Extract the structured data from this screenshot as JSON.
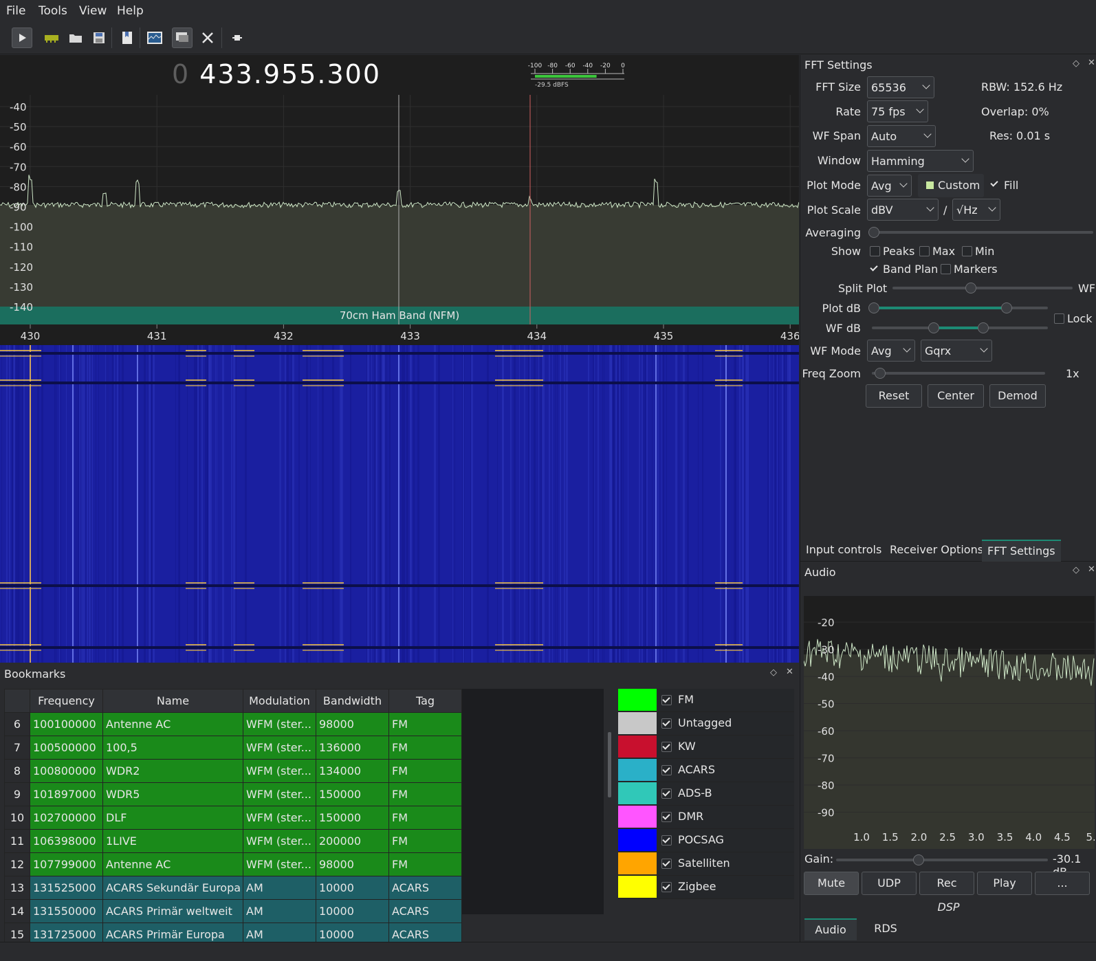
{
  "menu": [
    "File",
    "Tools",
    "View",
    "Help"
  ],
  "frequency": {
    "dim": "0",
    "main": " 433.955.300"
  },
  "smeter": {
    "scale": [
      "-100",
      "-80",
      "-60",
      "-40",
      "-20",
      "0"
    ],
    "reading": "-29.5 dBFS",
    "level_fraction": 0.7
  },
  "fft_plot": {
    "y_labels": [
      "-40",
      "-50",
      "-60",
      "-70",
      "-80",
      "-90",
      "-100",
      "-110",
      "-120",
      "-130",
      "-140"
    ],
    "x_labels": [
      "430",
      "431",
      "432",
      "433",
      "434",
      "435",
      "436"
    ],
    "band_label": "70cm Ham Band (NFM)"
  },
  "fft_settings": {
    "title": "FFT Settings",
    "fft_size_label": "FFT Size",
    "fft_size": "65536",
    "rbw": "RBW: 152.6 Hz",
    "rate_label": "Rate",
    "rate": "75 fps",
    "overlap": "Overlap: 0%",
    "wf_span_label": "WF Span",
    "wf_span": "Auto",
    "res": "Res: 0.01 s",
    "window_label": "Window",
    "window": "Hamming",
    "plot_mode_label": "Plot Mode",
    "plot_mode": "Avg",
    "custom": "Custom",
    "fill": "Fill",
    "plot_scale_label": "Plot Scale",
    "plot_scale": "dBV",
    "slash": "/",
    "plot_per": "√Hz",
    "averaging_label": "Averaging",
    "show_label": "Show",
    "peaks": "Peaks",
    "max": "Max",
    "min": "Min",
    "band_plan": "Band Plan",
    "markers": "Markers",
    "split_label": "Split",
    "split_plot": "Plot",
    "split_wf": "WF",
    "plot_db_label": "Plot dB",
    "wf_db_label": "WF dB",
    "lock": "Lock",
    "wf_mode_label": "WF Mode",
    "wf_mode": "Avg",
    "wf_colormap": "Gqrx",
    "freq_zoom_label": "Freq Zoom",
    "freq_zoom": "1x",
    "reset": "Reset",
    "center": "Center",
    "demod": "Demod"
  },
  "right_tabs": [
    "Input controls",
    "Receiver Options",
    "FFT Settings"
  ],
  "audio": {
    "title": "Audio",
    "y_labels": [
      "-20",
      "-30",
      "-40",
      "-50",
      "-60",
      "-70",
      "-80",
      "-90"
    ],
    "x_labels": [
      "1.0",
      "1.5",
      "2.0",
      "2.5",
      "3.0",
      "3.5",
      "4.0",
      "4.5",
      "5."
    ],
    "gain_label": "Gain:",
    "gain_value": "-30.1 dB",
    "buttons": [
      "Mute",
      "UDP",
      "Rec",
      "Play",
      "..."
    ],
    "dsp": "DSP",
    "tabs": [
      "Audio",
      "RDS"
    ]
  },
  "bookmarks": {
    "title": "Bookmarks",
    "columns": [
      "",
      "Frequency",
      "Name",
      "Modulation",
      "Bandwidth",
      "Tag"
    ],
    "rows": [
      {
        "n": "6",
        "freq": "100100000",
        "name": "Antenne AC",
        "mod": "WFM (ster...",
        "bw": "98000",
        "tag": "FM",
        "color": "#1a8a1a"
      },
      {
        "n": "7",
        "freq": "100500000",
        "name": "100,5",
        "mod": "WFM (ster...",
        "bw": "136000",
        "tag": "FM",
        "color": "#1a8a1a"
      },
      {
        "n": "8",
        "freq": "100800000",
        "name": "WDR2",
        "mod": "WFM (ster...",
        "bw": "134000",
        "tag": "FM",
        "color": "#1a8a1a"
      },
      {
        "n": "9",
        "freq": "101897000",
        "name": "WDR5",
        "mod": "WFM (ster...",
        "bw": "150000",
        "tag": "FM",
        "color": "#1a8a1a"
      },
      {
        "n": "10",
        "freq": "102700000",
        "name": "DLF",
        "mod": "WFM (ster...",
        "bw": "150000",
        "tag": "FM",
        "color": "#1a8a1a"
      },
      {
        "n": "11",
        "freq": "106398000",
        "name": "1LIVE",
        "mod": "WFM (ster...",
        "bw": "200000",
        "tag": "FM",
        "color": "#1a8a1a"
      },
      {
        "n": "12",
        "freq": "107799000",
        "name": "Antenne AC",
        "mod": "WFM (ster...",
        "bw": "98000",
        "tag": "FM",
        "color": "#1a8a1a"
      },
      {
        "n": "13",
        "freq": "131525000",
        "name": "ACARS Sekundär Europa",
        "mod": "AM",
        "bw": "10000",
        "tag": "ACARS",
        "color": "#1e5f66"
      },
      {
        "n": "14",
        "freq": "131550000",
        "name": "ACARS Primär weltweit",
        "mod": "AM",
        "bw": "10000",
        "tag": "ACARS",
        "color": "#1e5f66"
      },
      {
        "n": "15",
        "freq": "131725000",
        "name": "ACARS Primär Europa",
        "mod": "AM",
        "bw": "10000",
        "tag": "ACARS",
        "color": "#1e5f66"
      }
    ],
    "tags": [
      {
        "name": "FM",
        "color": "#00ff00"
      },
      {
        "name": "Untagged",
        "color": "#c8c8c8"
      },
      {
        "name": "KW",
        "color": "#c8102e"
      },
      {
        "name": "ACARS",
        "color": "#2ab0c8"
      },
      {
        "name": "ADS-B",
        "color": "#30c8b8"
      },
      {
        "name": "DMR",
        "color": "#ff55ff"
      },
      {
        "name": "POCSAG",
        "color": "#0000ff"
      },
      {
        "name": "Satelliten",
        "color": "#ffa500"
      },
      {
        "name": "Zigbee",
        "color": "#ffff00"
      }
    ]
  },
  "colors": {
    "accent": "#1d8a74",
    "band": "#1b6e5e",
    "waterfall": "#1a1fa0",
    "trace": "#cfe8c8"
  }
}
